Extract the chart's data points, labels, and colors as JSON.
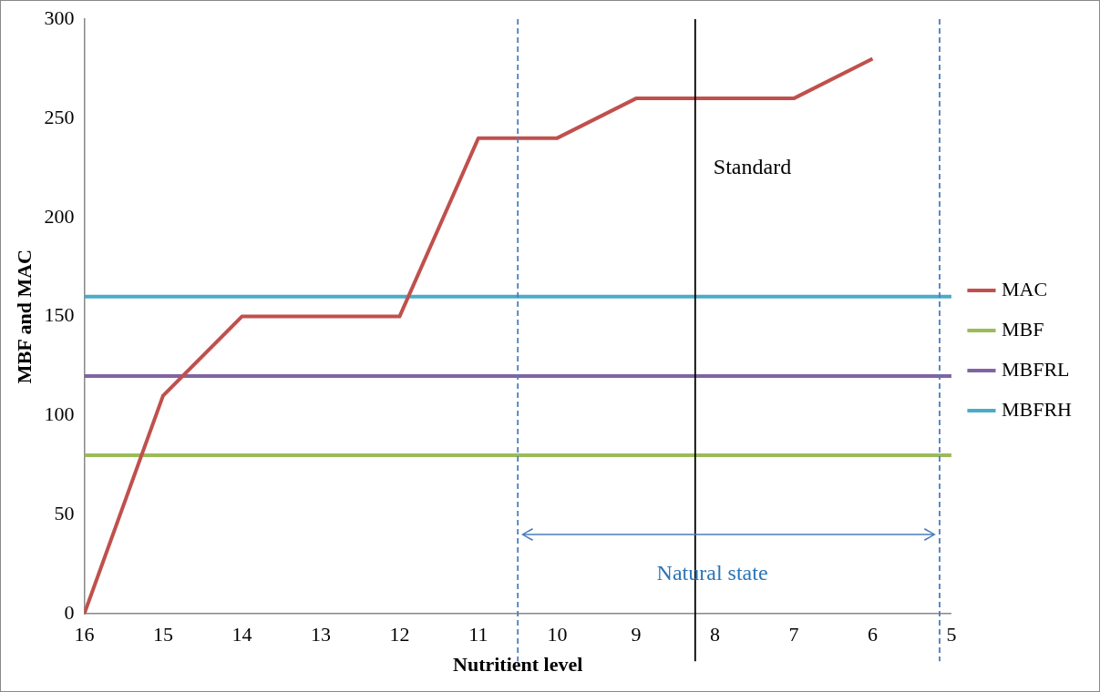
{
  "chart_data": {
    "type": "line",
    "xlabel": "Nutritient level",
    "ylabel": "MBF and MAC",
    "xlim": [
      16,
      5
    ],
    "xticks": [
      16,
      15,
      14,
      13,
      12,
      11,
      10,
      9,
      8,
      7,
      6,
      5
    ],
    "ylim": [
      0,
      300
    ],
    "yticks": [
      0,
      50,
      100,
      150,
      200,
      250,
      300
    ],
    "series": [
      {
        "name": "MAC",
        "color": "#c0504d",
        "x": [
          16,
          15,
          14,
          13,
          12,
          11,
          10,
          9,
          8,
          7,
          6
        ],
        "values": [
          0,
          110,
          150,
          150,
          150,
          240,
          240,
          260,
          260,
          260,
          280
        ]
      },
      {
        "name": "MBF",
        "color": "#9bbb59",
        "x": [
          16,
          5
        ],
        "values": [
          80,
          80
        ]
      },
      {
        "name": "MBFRL",
        "color": "#8064a2",
        "x": [
          16,
          5
        ],
        "values": [
          120,
          120
        ]
      },
      {
        "name": "MBFRH",
        "color": "#4bacc6",
        "x": [
          16,
          5
        ],
        "values": [
          160,
          160
        ]
      }
    ],
    "ref_lines": [
      {
        "axis": "x",
        "value": 8.25,
        "label": "Standard",
        "color": "#000000",
        "line_style": "solid"
      },
      {
        "axis": "x",
        "value": 10.5,
        "color": "#4a7ebb",
        "line_style": "dashed"
      },
      {
        "axis": "x",
        "value": 5.15,
        "color": "#4a7ebb",
        "line_style": "dashed"
      }
    ],
    "annotations": [
      "Natural state"
    ],
    "grid": false,
    "legend": "right",
    "marker": "none",
    "line_style": "solid"
  }
}
